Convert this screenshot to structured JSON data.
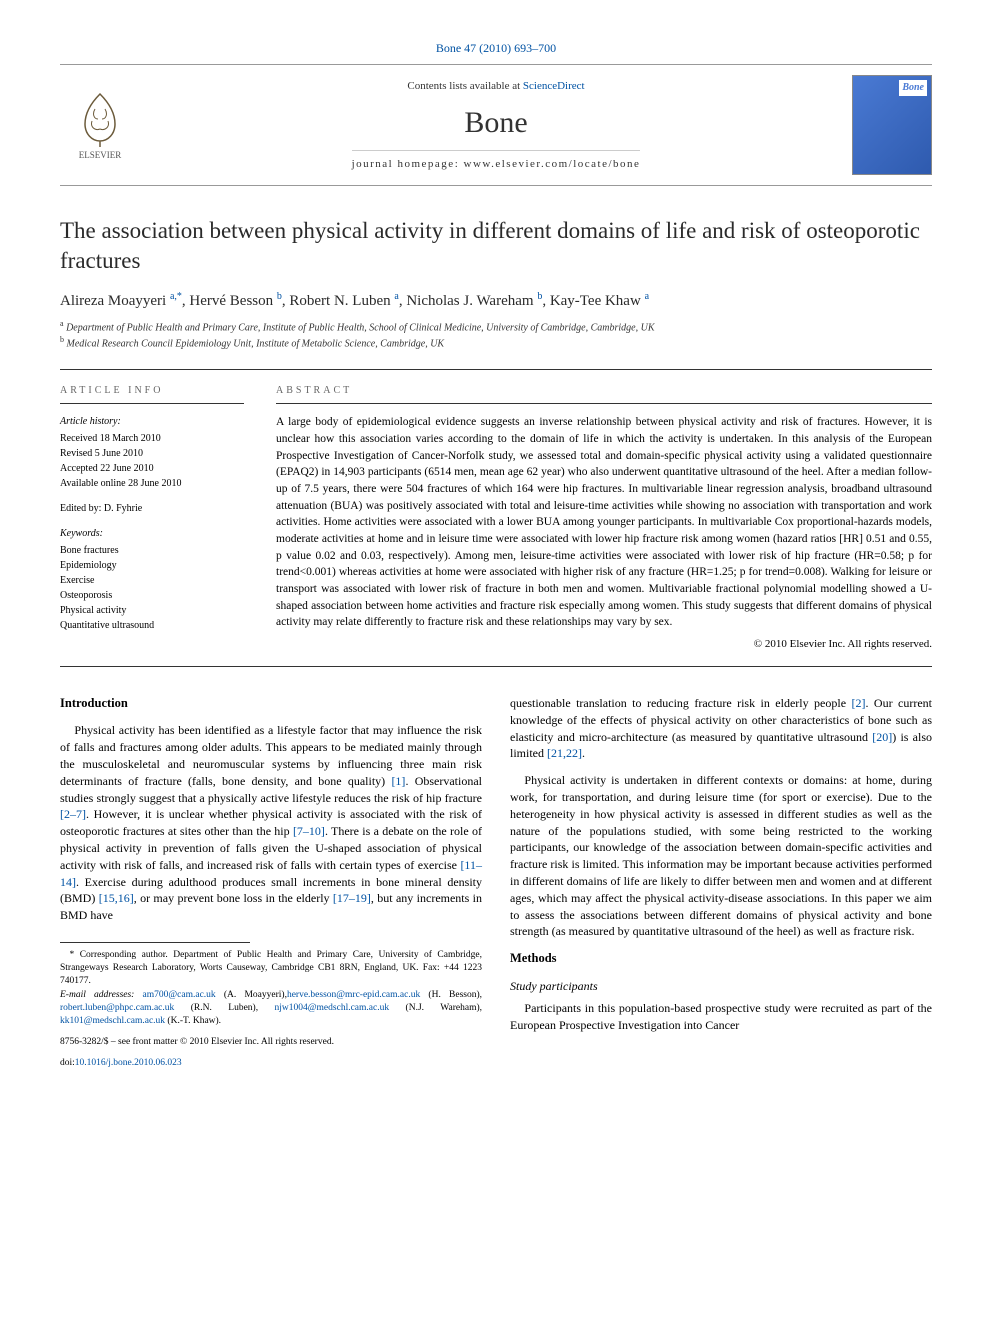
{
  "header": {
    "citation": "Bone 47 (2010) 693–700",
    "contents_prefix": "Contents lists available at ",
    "contents_link": "ScienceDirect",
    "journal_name": "Bone",
    "homepage_label": "journal homepage: www.elsevier.com/locate/bone",
    "cover_label": "Bone",
    "publisher_name": "ELSEVIER"
  },
  "title": "The association between physical activity in different domains of life and risk of osteoporotic fractures",
  "authors_html": "Alireza Moayyeri <sup>a,*</sup>, Hervé Besson <sup>b</sup>, Robert N. Luben <sup>a</sup>, Nicholas J. Wareham <sup>b</sup>, Kay-Tee Khaw <sup>a</sup>",
  "affiliations": [
    {
      "sup": "a",
      "text": "Department of Public Health and Primary Care, Institute of Public Health, School of Clinical Medicine, University of Cambridge, Cambridge, UK"
    },
    {
      "sup": "b",
      "text": "Medical Research Council Epidemiology Unit, Institute of Metabolic Science, Cambridge, UK"
    }
  ],
  "article_info": {
    "head": "article info",
    "history_label": "Article history:",
    "history": [
      "Received 18 March 2010",
      "Revised 5 June 2010",
      "Accepted 22 June 2010",
      "Available online 28 June 2010"
    ],
    "edited_by": "Edited by: D. Fyhrie",
    "keywords_label": "Keywords:",
    "keywords": [
      "Bone fractures",
      "Epidemiology",
      "Exercise",
      "Osteoporosis",
      "Physical activity",
      "Quantitative ultrasound"
    ]
  },
  "abstract": {
    "head": "abstract",
    "text": "A large body of epidemiological evidence suggests an inverse relationship between physical activity and risk of fractures. However, it is unclear how this association varies according to the domain of life in which the activity is undertaken. In this analysis of the European Prospective Investigation of Cancer-Norfolk study, we assessed total and domain-specific physical activity using a validated questionnaire (EPAQ2) in 14,903 participants (6514 men, mean age 62 year) who also underwent quantitative ultrasound of the heel. After a median follow-up of 7.5 years, there were 504 fractures of which 164 were hip fractures. In multivariable linear regression analysis, broadband ultrasound attenuation (BUA) was positively associated with total and leisure-time activities while showing no association with transportation and work activities. Home activities were associated with a lower BUA among younger participants. In multivariable Cox proportional-hazards models, moderate activities at home and in leisure time were associated with lower hip fracture risk among women (hazard ratios [HR] 0.51 and 0.55, p value 0.02 and 0.03, respectively). Among men, leisure-time activities were associated with lower risk of hip fracture (HR=0.58; p for trend<0.001) whereas activities at home were associated with higher risk of any fracture (HR=1.25; p for trend=0.008). Walking for leisure or transport was associated with lower risk of fracture in both men and women. Multivariable fractional polynomial modelling showed a U-shaped association between home activities and fracture risk especially among women. This study suggests that different domains of physical activity may relate differently to fracture risk and these relationships may vary by sex.",
    "copyright": "© 2010 Elsevier Inc. All rights reserved."
  },
  "body": {
    "intro_heading": "Introduction",
    "intro_p1_a": "Physical activity has been identified as a lifestyle factor that may influence the risk of falls and fractures among older adults. This appears to be mediated mainly through the musculoskeletal and neuromuscular systems by influencing three main risk determinants of fracture (falls, bone density, and bone quality) ",
    "ref1": "[1]",
    "intro_p1_b": ". Observational studies strongly suggest that a physically active lifestyle reduces the risk of hip fracture ",
    "ref2_7": "[2–7]",
    "intro_p1_c": ". However, it is unclear whether physical activity is associated with the risk of osteoporotic fractures at sites other than the hip ",
    "ref7_10": "[7–10]",
    "intro_p1_d": ". There is a debate on the role of physical activity in prevention of falls given the U-shaped association of physical activity with risk of falls, and increased risk of falls with certain types of exercise ",
    "ref11_14": "[11–14]",
    "intro_p1_e": ". Exercise during adulthood produces small increments in bone mineral density (BMD) ",
    "ref15_16": "[15,16]",
    "intro_p1_f": ", or may prevent bone loss in the elderly ",
    "ref17_19": "[17–19]",
    "intro_p1_g": ", but any increments in BMD have",
    "col2_p1_a": "questionable translation to reducing fracture risk in elderly people ",
    "ref2": "[2]",
    "col2_p1_b": ". Our current knowledge of the effects of physical activity on other characteristics of bone such as elasticity and micro-architecture (as measured by quantitative ultrasound ",
    "ref20": "[20]",
    "col2_p1_c": ") is also limited ",
    "ref21_22": "[21,22]",
    "col2_p1_d": ".",
    "col2_p2": "Physical activity is undertaken in different contexts or domains: at home, during work, for transportation, and during leisure time (for sport or exercise). Due to the heterogeneity in how physical activity is assessed in different studies as well as the nature of the populations studied, with some being restricted to the working participants, our knowledge of the association between domain-specific activities and fracture risk is limited. This information may be important because activities performed in different domains of life are likely to differ between men and women and at different ages, which may affect the physical activity-disease associations. In this paper we aim to assess the associations between different domains of physical activity and bone strength (as measured by quantitative ultrasound of the heel) as well as fracture risk.",
    "methods_heading": "Methods",
    "study_participants_heading": "Study participants",
    "methods_p1": "Participants in this population-based prospective study were recruited as part of the European Prospective Investigation into Cancer"
  },
  "footnote": {
    "corresponding": "* Corresponding author. Department of Public Health and Primary Care, University of Cambridge, Strangeways Research Laboratory, Worts Causeway, Cambridge CB1 8RN, England, UK. Fax: +44 1223 740177.",
    "email_label": "E-mail addresses: ",
    "emails": [
      {
        "addr": "am700@cam.ac.uk",
        "who": " (A. Moayyeri),"
      },
      {
        "addr": "herve.besson@mrc-epid.cam.ac.uk",
        "who": " (H. Besson), "
      },
      {
        "addr": "robert.luben@phpc.cam.ac.uk",
        "who": " (R.N. Luben), "
      },
      {
        "addr": "njw1004@medschl.cam.ac.uk",
        "who": " (N.J. Wareham), "
      },
      {
        "addr": "kk101@medschl.cam.ac.uk",
        "who": " (K.-T. Khaw)."
      }
    ],
    "issn_line": "8756-3282/$ – see front matter © 2010 Elsevier Inc. All rights reserved.",
    "doi_label": "doi:",
    "doi": "10.1016/j.bone.2010.06.023"
  },
  "colors": {
    "link": "#0052a3",
    "text": "#000000",
    "rule": "#333333"
  }
}
